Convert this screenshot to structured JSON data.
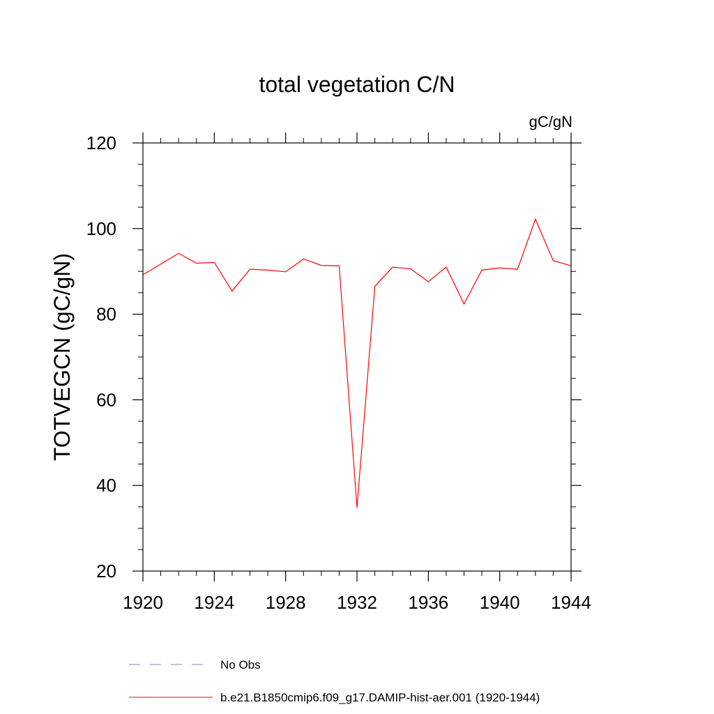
{
  "chart_data": {
    "type": "line",
    "title": "total vegetation C/N",
    "units": "gC/gN",
    "xlabel": "",
    "ylabel": "TOTVEGCN  (gC/gN)",
    "xlim": [
      1920,
      1944
    ],
    "ylim": [
      20,
      120
    ],
    "x_ticks": [
      1920,
      1924,
      1928,
      1932,
      1936,
      1940,
      1944
    ],
    "y_ticks": [
      20,
      40,
      60,
      80,
      100,
      120
    ],
    "grid": false,
    "legend_position": "bottom",
    "series": [
      {
        "name": "b.e21.B1850cmip6.f09_g17.DAMIP-hist-aer.001 (1920-1944)",
        "color": "#ff0000",
        "line_style": "solid",
        "x": [
          1920,
          1921,
          1922,
          1923,
          1924,
          1925,
          1926,
          1927,
          1928,
          1929,
          1930,
          1931,
          1932,
          1933,
          1934,
          1935,
          1936,
          1937,
          1938,
          1939,
          1940,
          1941,
          1942,
          1943,
          1944
        ],
        "y": [
          89.2,
          91.7,
          94.2,
          91.9,
          92.1,
          85.4,
          90.5,
          90.3,
          89.9,
          92.9,
          91.4,
          91.3,
          34.8,
          86.5,
          91.0,
          90.6,
          87.6,
          91.0,
          82.4,
          90.3,
          90.8,
          90.5,
          102.2,
          92.5,
          91.3
        ]
      }
    ],
    "legend": [
      {
        "label": "No Obs",
        "color": "#8080c0",
        "line_style": "dashed"
      },
      {
        "label": "b.e21.B1850cmip6.f09_g17.DAMIP-hist-aer.001 (1920-1944)",
        "color": "#ff0000",
        "line_style": "solid"
      }
    ]
  }
}
